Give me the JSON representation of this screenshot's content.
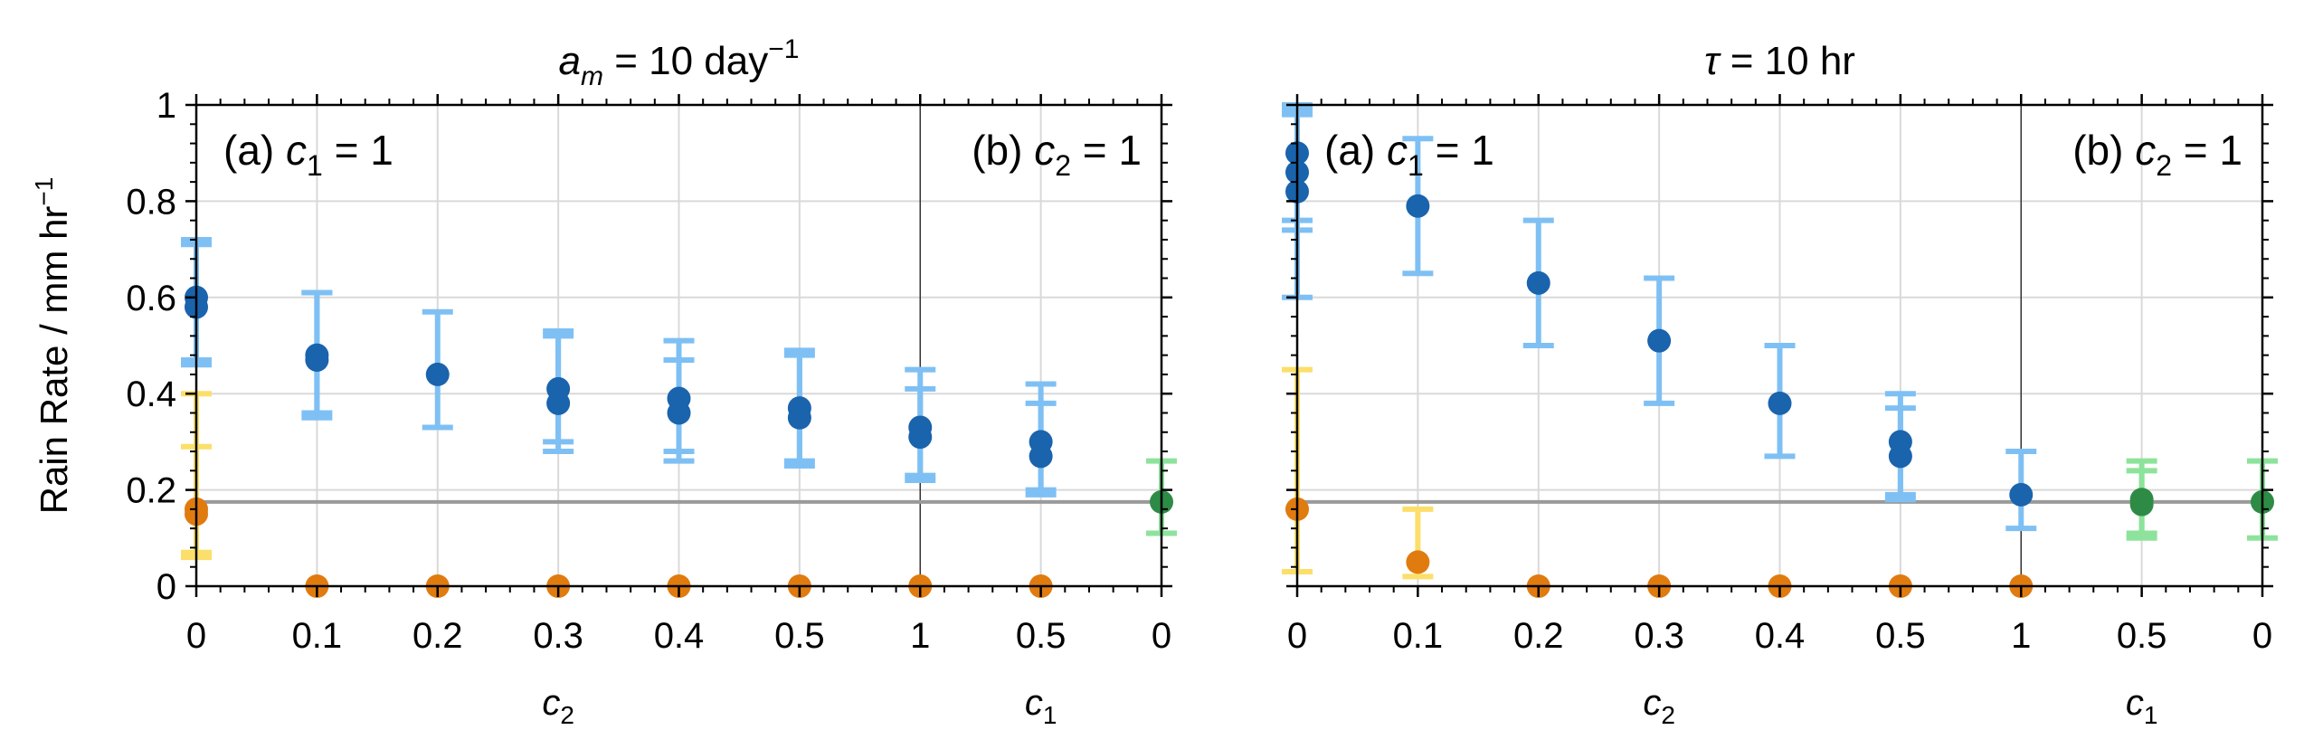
{
  "chart_data": [
    {
      "type": "scatter",
      "title": "a_m = 10 day⁻¹",
      "title_parts": {
        "var": "a",
        "sub": "m",
        "rest": " = 10 day",
        "sup": "−1"
      },
      "ylabel": "Rain Rate / mm hr⁻¹",
      "ylabel_parts": {
        "text": "Rain Rate / mm hr",
        "sup": "−1"
      },
      "ylim": [
        0,
        1
      ],
      "yticks": [
        "0",
        "0.2",
        "0.4",
        "0.6",
        "0.8",
        "1"
      ],
      "xticks": [
        "0",
        "0.1",
        "0.2",
        "0.3",
        "0.4",
        "0.5",
        "1",
        "0.5",
        "0"
      ],
      "xlabels": [
        {
          "var": "c",
          "sub": "2"
        },
        {
          "var": "c",
          "sub": "1"
        }
      ],
      "annotations": [
        {
          "prefix": "(a) ",
          "var": "c",
          "sub": "1",
          "rest": " = 1"
        },
        {
          "prefix": "(b) ",
          "var": "c",
          "sub": "2",
          "rest": " = 1"
        }
      ],
      "grid": true,
      "reference_line": 0.175,
      "series": [
        {
          "color": "#1a63ad",
          "errcolor": "#7fc0f4",
          "points": [
            {
              "x": 0,
              "y": 0.6,
              "lo": 0.47,
              "hi": 0.72
            },
            {
              "x": 0,
              "y": 0.58,
              "lo": 0.46,
              "hi": 0.71
            },
            {
              "x": 1,
              "y": 0.48,
              "lo": 0.36,
              "hi": 0.61
            },
            {
              "x": 1,
              "y": 0.47,
              "lo": 0.35,
              "hi": 0.61
            },
            {
              "x": 2,
              "y": 0.44,
              "lo": 0.33,
              "hi": 0.57
            },
            {
              "x": 3,
              "y": 0.41,
              "lo": 0.3,
              "hi": 0.53
            },
            {
              "x": 3,
              "y": 0.38,
              "lo": 0.28,
              "hi": 0.52
            },
            {
              "x": 4,
              "y": 0.39,
              "lo": 0.28,
              "hi": 0.51
            },
            {
              "x": 4,
              "y": 0.36,
              "lo": 0.26,
              "hi": 0.47
            },
            {
              "x": 5,
              "y": 0.37,
              "lo": 0.26,
              "hi": 0.49
            },
            {
              "x": 5,
              "y": 0.35,
              "lo": 0.25,
              "hi": 0.48
            },
            {
              "x": 6,
              "y": 0.33,
              "lo": 0.23,
              "hi": 0.45
            },
            {
              "x": 6,
              "y": 0.31,
              "lo": 0.22,
              "hi": 0.41
            },
            {
              "x": 7,
              "y": 0.3,
              "lo": 0.2,
              "hi": 0.42
            },
            {
              "x": 7,
              "y": 0.27,
              "lo": 0.19,
              "hi": 0.38
            }
          ]
        },
        {
          "color": "#e07b10",
          "errcolor": "#fbdf6a",
          "points": [
            {
              "x": 0,
              "y": 0.16,
              "lo": 0.06,
              "hi": 0.4
            },
            {
              "x": 0,
              "y": 0.15,
              "lo": 0.07,
              "hi": 0.29
            },
            {
              "x": 1,
              "y": 0.0
            },
            {
              "x": 2,
              "y": 0.0
            },
            {
              "x": 3,
              "y": 0.0
            },
            {
              "x": 4,
              "y": 0.0
            },
            {
              "x": 5,
              "y": 0.0
            },
            {
              "x": 6,
              "y": 0.0
            },
            {
              "x": 7,
              "y": 0.0
            }
          ]
        },
        {
          "color": "#2e8b46",
          "errcolor": "#8de39b",
          "points": [
            {
              "x": 8,
              "y": 0.175,
              "lo": 0.11,
              "hi": 0.26
            }
          ]
        }
      ]
    },
    {
      "type": "scatter",
      "title": "τ = 10 hr",
      "title_parts": {
        "var": "τ",
        "sub": "",
        "rest": " = 10 hr",
        "sup": ""
      },
      "ylabel": "",
      "ylim": [
        0,
        1
      ],
      "xticks": [
        "0",
        "0.1",
        "0.2",
        "0.3",
        "0.4",
        "0.5",
        "1",
        "0.5",
        "0"
      ],
      "xlabels": [
        {
          "var": "c",
          "sub": "2"
        },
        {
          "var": "c",
          "sub": "1"
        }
      ],
      "annotations": [
        {
          "prefix": "(a) ",
          "var": "c",
          "sub": "1",
          "rest": " = 1"
        },
        {
          "prefix": "(b) ",
          "var": "c",
          "sub": "2",
          "rest": " = 1"
        }
      ],
      "grid": true,
      "reference_line": 0.175,
      "series": [
        {
          "color": "#1a63ad",
          "errcolor": "#7fc0f4",
          "points": [
            {
              "x": 0,
              "y": 0.9,
              "lo": 0.76,
              "hi": 1.0
            },
            {
              "x": 0,
              "y": 0.86,
              "lo": 0.74,
              "hi": 0.98
            },
            {
              "x": 0,
              "y": 0.82,
              "lo": 0.6,
              "hi": 0.99
            },
            {
              "x": 1,
              "y": 0.79,
              "lo": 0.65,
              "hi": 0.93
            },
            {
              "x": 2,
              "y": 0.63,
              "lo": 0.5,
              "hi": 0.76
            },
            {
              "x": 3,
              "y": 0.51,
              "lo": 0.38,
              "hi": 0.64
            },
            {
              "x": 4,
              "y": 0.38,
              "lo": 0.27,
              "hi": 0.5
            },
            {
              "x": 5,
              "y": 0.3,
              "lo": 0.19,
              "hi": 0.4
            },
            {
              "x": 5,
              "y": 0.27,
              "lo": 0.18,
              "hi": 0.37
            },
            {
              "x": 6,
              "y": 0.19,
              "lo": 0.12,
              "hi": 0.28
            }
          ]
        },
        {
          "color": "#e07b10",
          "errcolor": "#fbdf6a",
          "points": [
            {
              "x": 0,
              "y": 0.16,
              "lo": 0.03,
              "hi": 0.45
            },
            {
              "x": 1,
              "y": 0.05,
              "lo": 0.02,
              "hi": 0.16
            },
            {
              "x": 2,
              "y": 0.0
            },
            {
              "x": 3,
              "y": 0.0
            },
            {
              "x": 4,
              "y": 0.0
            },
            {
              "x": 5,
              "y": 0.0
            },
            {
              "x": 6,
              "y": 0.0
            }
          ]
        },
        {
          "color": "#2e8b46",
          "errcolor": "#8de39b",
          "points": [
            {
              "x": 7,
              "y": 0.18,
              "lo": 0.1,
              "hi": 0.26
            },
            {
              "x": 7,
              "y": 0.17,
              "lo": 0.11,
              "hi": 0.24
            },
            {
              "x": 8,
              "y": 0.175,
              "lo": 0.1,
              "hi": 0.26
            }
          ]
        }
      ]
    }
  ]
}
